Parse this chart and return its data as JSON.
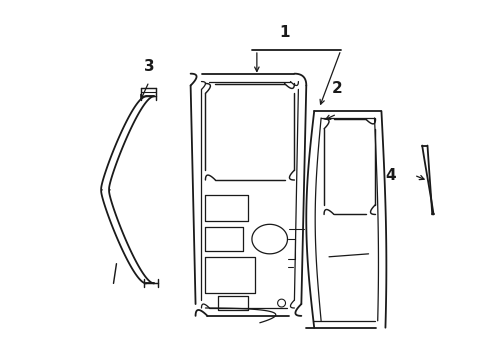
{
  "background_color": "#ffffff",
  "line_color": "#1a1a1a",
  "line_width": 1.3,
  "label_fontsize": 10,
  "fig_width": 4.89,
  "fig_height": 3.6,
  "dpi": 100
}
